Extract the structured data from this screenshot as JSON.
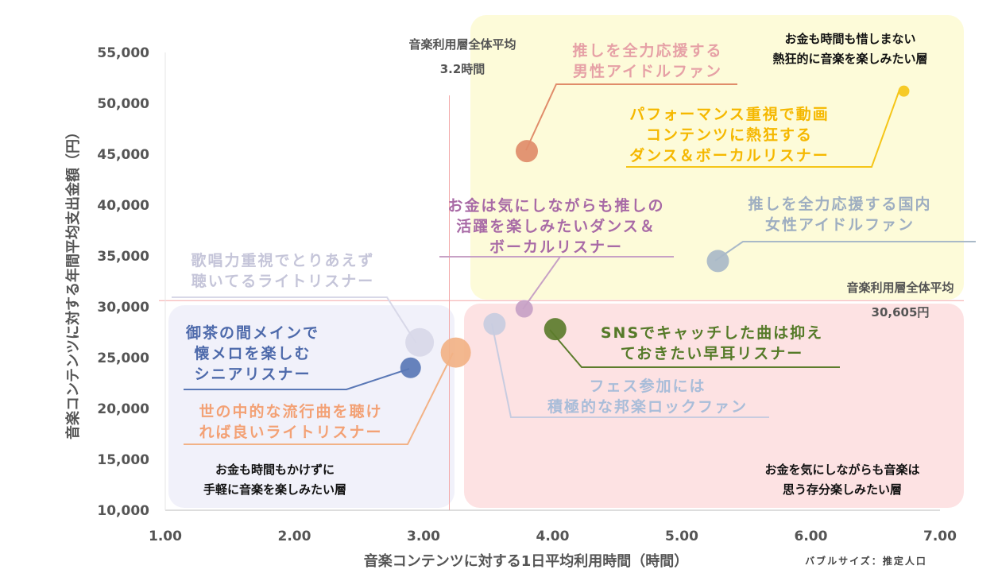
{
  "chart_data": {
    "type": "scatter",
    "bubble": true,
    "xlabel": "音楽コンテンツに対する1日平均利用時間（時間）",
    "ylabel": "音楽コンテンツに対する年間平均支出金額（円）",
    "xlim": [
      1.0,
      7.0
    ],
    "ylim": [
      10000,
      55000
    ],
    "x_ticks": [
      "1.00",
      "2.00",
      "3.00",
      "4.00",
      "5.00",
      "6.00",
      "7.00"
    ],
    "y_ticks": [
      "10,000",
      "15,000",
      "20,000",
      "25,000",
      "30,000",
      "35,000",
      "40,000",
      "45,000",
      "50,000",
      "55,000"
    ],
    "size_note": "バブルサイズ：推定人口",
    "grid": false,
    "avg_x": {
      "value": 3.2,
      "label1": "音楽利用層全体平均",
      "label2": "3.2時間"
    },
    "avg_y": {
      "value": 30605,
      "label1": "音楽利用層全体平均",
      "label2": "30,605円"
    },
    "quadrants": [
      {
        "id": "top-right",
        "lines": [
          "お金も時間も惜しまない",
          "熱狂的に音楽を楽しみたい層"
        ],
        "color": "#fdfbd9"
      },
      {
        "id": "bottom-left",
        "lines": [
          "お金も時間もかけずに",
          "手軽に音楽を楽しみたい層"
        ],
        "color": "#f1f1fa"
      },
      {
        "id": "bottom-right",
        "lines": [
          "お金を気にしながらも音楽は",
          "思う存分楽しみたい層"
        ],
        "color": "#fde2e3"
      }
    ],
    "series": [
      {
        "lines": [
          "推しを全力応援する",
          "男性アイドルファン"
        ],
        "x": 3.8,
        "y": 45300,
        "size": 14,
        "color": "#e08c6a",
        "text_color": "#e6a1a6"
      },
      {
        "lines": [
          "パフォーマンス重視で動画",
          "コンテンツに熱狂する",
          "ダンス＆ボーカルリスナー"
        ],
        "x": 6.72,
        "y": 51200,
        "size": 7,
        "color": "#f5c518",
        "text_color": "#f5b800"
      },
      {
        "lines": [
          "推しを全力応援する国内",
          "女性アイドルファン"
        ],
        "x": 5.28,
        "y": 34500,
        "size": 14,
        "color": "#a9b9c8",
        "text_color": "#9eaec1"
      },
      {
        "lines": [
          "お金は気にしながらも推しの",
          "活躍を楽しみたいダンス＆",
          "ボーカルリスナー"
        ],
        "x": 3.78,
        "y": 29800,
        "size": 11,
        "color": "#c7a1c5",
        "text_color": "#a86aa6"
      },
      {
        "lines": [
          "SNSでキャッチした曲は抑え",
          "ておきたい早耳リスナー"
        ],
        "x": 4.02,
        "y": 27800,
        "size": 14,
        "color": "#5c7c2c",
        "text_color": "#557a28"
      },
      {
        "lines": [
          "フェス参加には",
          "積極的な邦楽ロックファン"
        ],
        "x": 3.55,
        "y": 28300,
        "size": 14,
        "color": "#c8cce0",
        "text_color": "#a9bdd9"
      },
      {
        "lines": [
          "歌唱力重視でとりあえず",
          "聴いてるライトリスナー"
        ],
        "x": 2.97,
        "y": 26500,
        "size": 18,
        "color": "#d8d8e8",
        "text_color": "#c5c5d9"
      },
      {
        "lines": [
          "世の中的な流行曲を聴け",
          "れば良いライトリスナー"
        ],
        "x": 3.25,
        "y": 25500,
        "size": 19,
        "color": "#f2b286",
        "text_color": "#f3a175"
      },
      {
        "lines": [
          "御茶の間メインで",
          "懐メロを楽しむ",
          "シニアリスナー"
        ],
        "x": 2.9,
        "y": 24000,
        "size": 13,
        "color": "#5a78b6",
        "text_color": "#4e6aab"
      }
    ]
  }
}
